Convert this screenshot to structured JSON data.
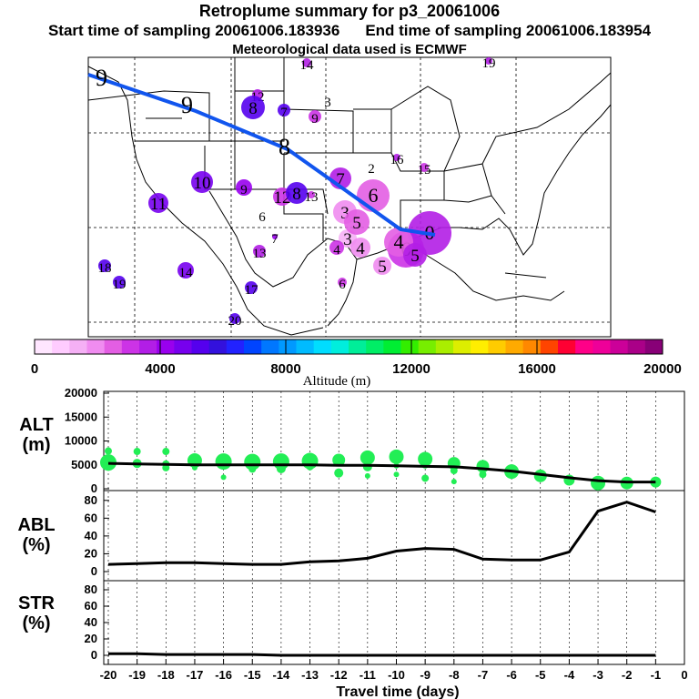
{
  "titles": {
    "line1": "Retroplume summary for p3_20061006",
    "start": "Start time of sampling 20061006.183936",
    "end": "End time of sampling 20061006.183954",
    "line3": "Meteorological data used is ECMWF"
  },
  "map": {
    "path_day_labels": [
      "9",
      "9",
      "8"
    ],
    "clusters": [
      {
        "label": "19",
        "alt": 3600
      },
      {
        "label": "14",
        "alt": 3600
      },
      {
        "label": "12",
        "alt": 3500
      },
      {
        "label": "8",
        "alt": 5400
      },
      {
        "label": "7",
        "alt": 5400
      },
      {
        "label": "9",
        "alt": 3200
      },
      {
        "label": "3",
        "alt": 0
      },
      {
        "label": "16",
        "alt": 3600
      },
      {
        "label": "15",
        "alt": 3200
      },
      {
        "label": "2",
        "alt": 1800
      },
      {
        "label": "7",
        "alt": 3600
      },
      {
        "label": "10",
        "alt": 4800
      },
      {
        "label": "9",
        "alt": 4200
      },
      {
        "label": "12",
        "alt": 3200
      },
      {
        "label": "8",
        "alt": 5400
      },
      {
        "label": "13",
        "alt": 3000
      },
      {
        "label": "6",
        "alt": 0
      },
      {
        "label": "11",
        "alt": 4800
      },
      {
        "label": "6",
        "alt": 2600
      },
      {
        "label": "3",
        "alt": 1800
      },
      {
        "label": "3",
        "alt": 1400
      },
      {
        "label": "4",
        "alt": 3000
      },
      {
        "label": "6",
        "alt": 3200
      },
      {
        "label": "5",
        "alt": 2200
      },
      {
        "label": "0",
        "alt": 3800
      },
      {
        "label": "13",
        "alt": 3600
      },
      {
        "label": "7",
        "alt": 4400
      },
      {
        "label": "4",
        "alt": 2000
      },
      {
        "label": "4",
        "alt": 2400
      },
      {
        "label": "5",
        "alt": 2600
      },
      {
        "label": "5",
        "alt": 3400
      },
      {
        "label": "18",
        "alt": 5400
      },
      {
        "label": "14",
        "alt": 4600
      },
      {
        "label": "19",
        "alt": 5000
      },
      {
        "label": "17",
        "alt": 5200
      },
      {
        "label": "6",
        "alt": 3200
      },
      {
        "label": "20",
        "alt": 5400
      }
    ]
  },
  "colorbar": {
    "label": "Altitude (m)",
    "ticks": [
      "0",
      "4000",
      "8000",
      "12000",
      "16000",
      "20000"
    ],
    "colors": [
      "#ffe6ff",
      "#ffccff",
      "#f5b0f5",
      "#f08cf0",
      "#e35ee3",
      "#cc33e6",
      "#b21ee6",
      "#9900ee",
      "#7700ee",
      "#5500ee",
      "#3311dd",
      "#2222ff",
      "#0044ff",
      "#0077ff",
      "#0099ff",
      "#00bbff",
      "#00ddff",
      "#00eedd",
      "#00ee99",
      "#00ee66",
      "#00ee33",
      "#33ee00",
      "#77ee00",
      "#aaee00",
      "#ddee00",
      "#ffee00",
      "#ffcc00",
      "#ffaa00",
      "#ff8800",
      "#ff4400",
      "#ff0033",
      "#ff0088",
      "#ee0099",
      "#cc0099",
      "#aa0088",
      "#880077"
    ]
  },
  "panels": {
    "alt_label": "ALT\n(m)",
    "abl_label": "ABL\n(%)",
    "str_label": "STR\n(%)",
    "xlabel": "Travel time (days)",
    "x_ticks": [
      "-20",
      "-19",
      "-18",
      "-17",
      "-16",
      "-15",
      "-14",
      "-13",
      "-12",
      "-11",
      "-10",
      "-9",
      "-8",
      "-7",
      "-6",
      "-5",
      "-4",
      "-3",
      "-2",
      "-1",
      "0"
    ],
    "alt_ticks": [
      "0",
      "5000",
      "10000",
      "15000",
      "20000"
    ],
    "pct_ticks": [
      "0",
      "20",
      "40",
      "60",
      "80"
    ]
  },
  "chart_data": [
    {
      "type": "line",
      "title": "ALT",
      "xlabel": "Travel time (days)",
      "ylabel": "ALT (m)",
      "xlim": [
        -20,
        0
      ],
      "ylim": [
        0,
        20000
      ],
      "x": [
        -20,
        -19,
        -18,
        -17,
        -16,
        -15,
        -14,
        -13,
        -12,
        -11,
        -10,
        -9,
        -8,
        -7,
        -6,
        -5,
        -4,
        -3,
        -2,
        -1
      ],
      "series": [
        {
          "name": "mean altitude",
          "values": [
            5300,
            5200,
            5100,
            5000,
            5000,
            5000,
            5000,
            5000,
            4900,
            4900,
            4800,
            4700,
            4600,
            4200,
            3700,
            3000,
            2300,
            1700,
            1400,
            1400
          ]
        }
      ],
      "scatter": {
        "color": "#22ee55",
        "x": [
          -20,
          -20,
          -20,
          -19,
          -19,
          -18,
          -18,
          -18,
          -17,
          -17,
          -16,
          -16,
          -15,
          -15,
          -14,
          -14,
          -13,
          -13,
          -12,
          -12,
          -11,
          -11,
          -11,
          -10,
          -10,
          -10,
          -9,
          -9,
          -9,
          -8,
          -8,
          -8,
          -7,
          -7,
          -6,
          -5,
          -4,
          -3,
          -2,
          -1
        ],
        "y": [
          7900,
          5500,
          4500,
          7800,
          5300,
          7800,
          5200,
          4400,
          5900,
          4400,
          5700,
          2400,
          5600,
          4100,
          5700,
          4200,
          5800,
          4600,
          6000,
          3300,
          6500,
          4600,
          2700,
          6700,
          4800,
          3000,
          6200,
          5000,
          2200,
          5300,
          3800,
          1500,
          4700,
          3000,
          3600,
          2700,
          1800,
          1200,
          1200,
          1400
        ],
        "size": [
          4,
          9,
          4,
          4,
          5,
          4,
          4,
          4,
          8,
          3,
          9,
          3,
          9,
          4,
          9,
          5,
          9,
          4,
          7,
          5,
          8,
          5,
          3,
          8,
          3,
          3,
          8,
          4,
          4,
          7,
          4,
          3,
          7,
          4,
          8,
          7,
          6,
          8,
          7,
          6
        ]
      }
    },
    {
      "type": "line",
      "title": "ABL",
      "xlabel": "Travel time (days)",
      "ylabel": "ABL (%)",
      "xlim": [
        -20,
        0
      ],
      "ylim": [
        0,
        90
      ],
      "x": [
        -20,
        -19,
        -18,
        -17,
        -16,
        -15,
        -14,
        -13,
        -12,
        -11,
        -10,
        -9,
        -8,
        -7,
        -6,
        -5,
        -4,
        -3,
        -2,
        -1
      ],
      "series": [
        {
          "name": "ABL fraction",
          "values": [
            8,
            9,
            10,
            10,
            9,
            8,
            8,
            11,
            12,
            15,
            23,
            26,
            25,
            14,
            13,
            13,
            22,
            68,
            78,
            67
          ]
        }
      ]
    },
    {
      "type": "line",
      "title": "STR",
      "xlabel": "Travel time (days)",
      "ylabel": "STR (%)",
      "xlim": [
        -20,
        0
      ],
      "ylim": [
        0,
        90
      ],
      "x": [
        -20,
        -19,
        -18,
        -17,
        -16,
        -15,
        -14,
        -13,
        -12,
        -11,
        -10,
        -9,
        -8,
        -7,
        -6,
        -5,
        -4,
        -3,
        -2,
        -1
      ],
      "series": [
        {
          "name": "stratospheric fraction",
          "values": [
            2,
            2,
            1,
            1,
            1,
            1,
            0,
            0,
            0,
            0,
            0,
            0,
            0,
            0,
            0,
            0,
            0,
            0,
            0,
            0
          ]
        }
      ]
    }
  ]
}
